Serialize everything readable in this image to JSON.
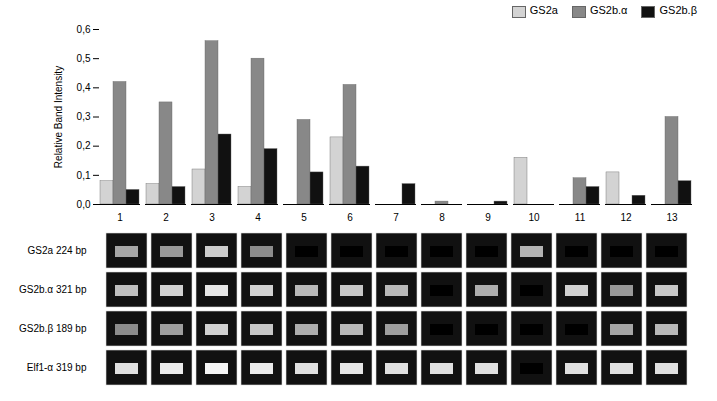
{
  "chart_data": [
    {
      "type": "bar",
      "categories": [
        1,
        2,
        3,
        4,
        5,
        6,
        7,
        8,
        9,
        10,
        11,
        12,
        13
      ],
      "series": [
        {
          "name": "GS2a",
          "color": "#d3d3d3",
          "values": [
            0.08,
            0.07,
            0.12,
            0.06,
            0.0,
            0.23,
            0.0,
            0.0,
            0.0,
            0.16,
            0.0,
            0.11,
            0.0
          ]
        },
        {
          "name": "GS2b.α",
          "color": "#888888",
          "values": [
            0.42,
            0.35,
            0.56,
            0.5,
            0.29,
            0.41,
            0.0,
            0.01,
            0.0,
            0.0,
            0.09,
            0.0,
            0.3
          ]
        },
        {
          "name": "GS2b.β",
          "color": "#111111",
          "values": [
            0.05,
            0.06,
            0.24,
            0.19,
            0.11,
            0.13,
            0.07,
            0.0,
            0.01,
            0.0,
            0.06,
            0.03,
            0.08
          ]
        }
      ],
      "ylabel": "Relative Band Intensity",
      "ylim": [
        0,
        0.6
      ],
      "yticks": [
        {
          "value": 0,
          "label": "0,0"
        },
        {
          "value": 0.1,
          "label": "0,1"
        },
        {
          "value": 0.2,
          "label": "0,2"
        },
        {
          "value": 0.3,
          "label": "0,3"
        },
        {
          "value": 0.4,
          "label": "0,4"
        },
        {
          "value": 0.5,
          "label": "0,5"
        },
        {
          "value": 0.6,
          "label": "0,6"
        }
      ],
      "legend": "upper right",
      "grid": false
    },
    {
      "type": "heatmap",
      "categories": [
        1,
        2,
        3,
        4,
        5,
        6,
        7,
        8,
        9,
        10,
        11,
        12,
        13
      ],
      "rows": [
        "GS2a 224 bp",
        "GS2b.α 321 bp",
        "GS2b.β 189 bp",
        "Elf1-α 319 bp"
      ],
      "values": [
        [
          0.65,
          0.6,
          0.8,
          0.55,
          0.0,
          0.0,
          0.0,
          0.0,
          0.0,
          0.7,
          0.0,
          0.0,
          0.0
        ],
        [
          0.75,
          0.82,
          0.9,
          0.82,
          0.72,
          0.78,
          0.72,
          0.0,
          0.68,
          0.0,
          0.82,
          0.6,
          0.78
        ],
        [
          0.55,
          0.62,
          0.82,
          0.78,
          0.68,
          0.72,
          0.62,
          0.0,
          0.0,
          0.0,
          0.0,
          0.65,
          0.72
        ],
        [
          0.88,
          0.92,
          0.96,
          0.92,
          0.88,
          0.9,
          0.88,
          0.88,
          0.88,
          0.0,
          0.88,
          0.88,
          0.88
        ]
      ],
      "tick_labels": "y"
    }
  ]
}
